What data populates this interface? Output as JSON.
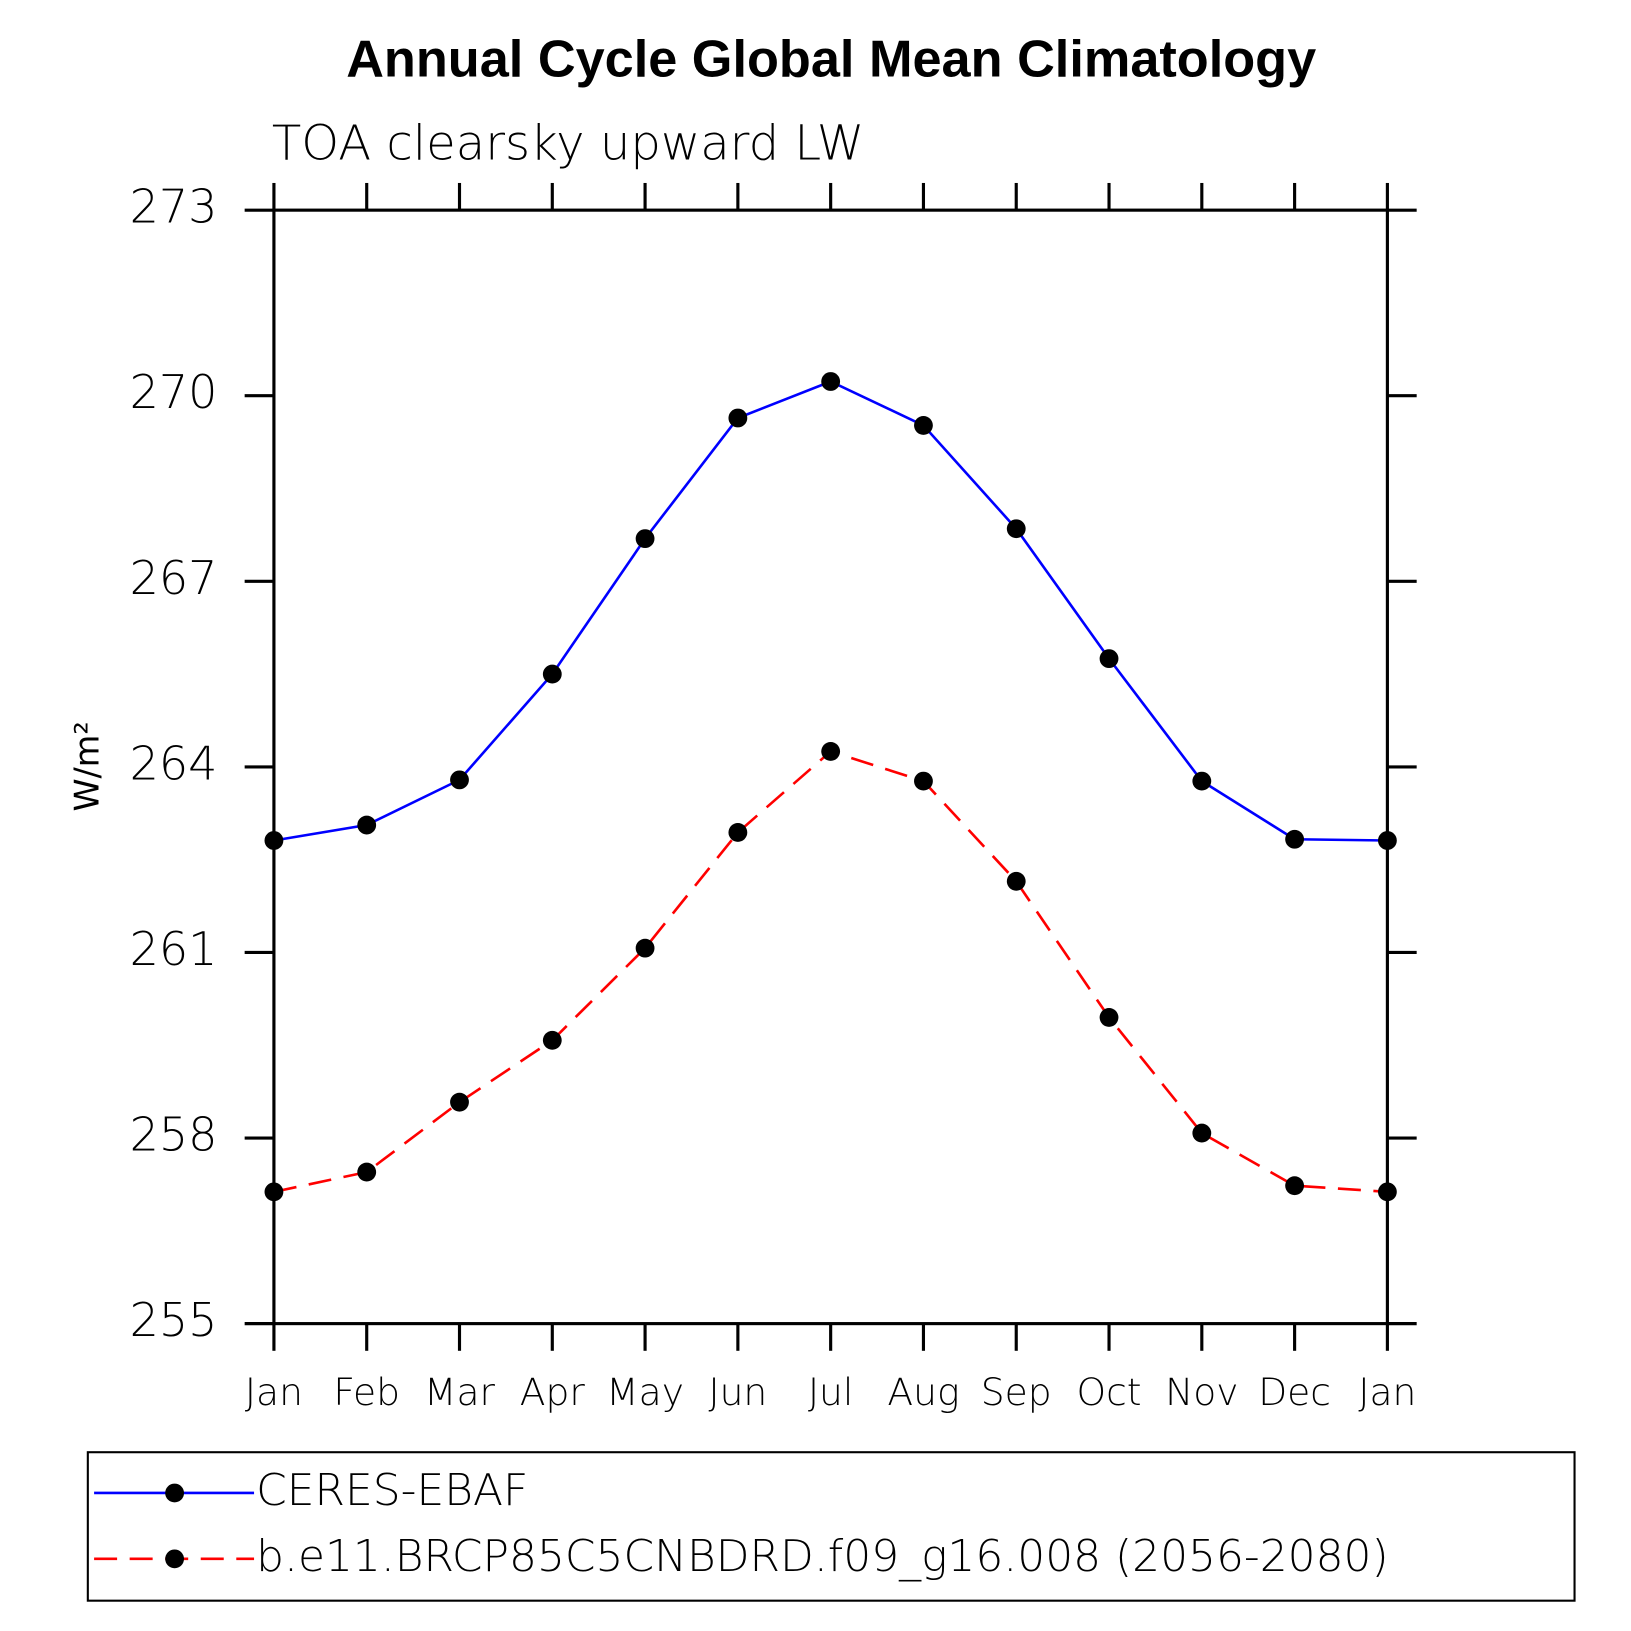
{
  "chart_data": {
    "type": "line",
    "title": "Annual Cycle Global Mean Climatology",
    "subtitle": "TOA clearsky upward LW",
    "y_label": "W/m²",
    "categories": [
      "Jan",
      "Feb",
      "Mar",
      "Apr",
      "May",
      "Jun",
      "Jul",
      "Aug",
      "Sep",
      "Oct",
      "Nov",
      "Dec",
      "Jan"
    ],
    "series": [
      {
        "name": "CERES-EBAF",
        "color": "#0000ff",
        "dash": "solid",
        "values": [
          262.81,
          263.06,
          263.79,
          265.5,
          267.69,
          269.64,
          270.23,
          269.52,
          267.85,
          265.75,
          263.77,
          262.83,
          262.81
        ]
      },
      {
        "name": "b.e11.BRCP85C5CNBDRD.f09_g16.008 (2056-2080)",
        "color": "#ff0000",
        "dash": "dashed",
        "values": [
          257.13,
          257.45,
          258.58,
          259.58,
          261.07,
          262.94,
          264.25,
          263.77,
          262.15,
          259.95,
          258.08,
          257.23,
          257.13
        ]
      }
    ],
    "ylim": [
      255,
      273
    ],
    "yticks": [
      255,
      258,
      261,
      264,
      267,
      270,
      273
    ]
  }
}
